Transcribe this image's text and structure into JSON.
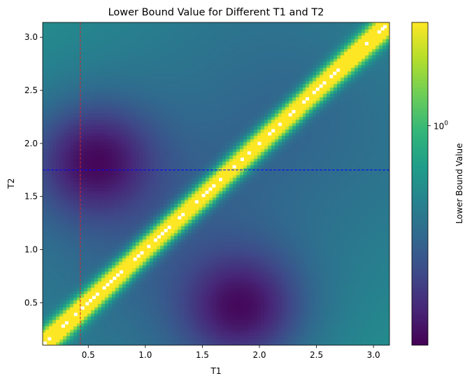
{
  "chart_data": {
    "type": "heatmap",
    "title": "Lower Bound Value for Different T1 and T2",
    "xlabel": "T1",
    "ylabel": "T2",
    "xlim": [
      0.1,
      3.14
    ],
    "ylim": [
      0.1,
      3.14
    ],
    "x_ticks": [
      0.5,
      1.0,
      1.5,
      2.0,
      2.5,
      3.0
    ],
    "y_ticks": [
      0.5,
      1.0,
      1.5,
      2.0,
      2.5,
      3.0
    ],
    "x_tick_labels": [
      "0.5",
      "1.0",
      "1.5",
      "2.0",
      "2.5",
      "3.0"
    ],
    "y_tick_labels": [
      "0.5",
      "1.0",
      "1.5",
      "2.0",
      "2.5",
      "3.0"
    ],
    "grid": false,
    "colormap": "viridis",
    "color_scale": "log",
    "colorbar": {
      "label": "Lower Bound Value",
      "tick_value": 1.0,
      "tick_label_base": "10",
      "tick_label_exp": "0",
      "range": [
        0.07,
        3.5
      ]
    },
    "surface_description": "value is large along the diagonal T1 = T2 (saturated yellow, with white/undefined cells on the diagonal), small in two off-diagonal basins near (0.55, 1.85) and (1.85, 0.45)",
    "basins": [
      {
        "t1": 0.55,
        "t2": 1.85
      },
      {
        "t1": 1.85,
        "t2": 0.45
      }
    ],
    "reference_lines": [
      {
        "orientation": "vertical",
        "value": 0.43,
        "color": "#d62728",
        "style": "dashed"
      },
      {
        "orientation": "horizontal",
        "value": 1.75,
        "color": "#0000ff",
        "style": "dashed"
      }
    ],
    "undefined_cells_t": [
      0.12,
      0.16,
      0.28,
      0.31,
      0.39,
      0.45,
      0.49,
      0.52,
      0.55,
      0.58,
      0.64,
      0.67,
      0.7,
      0.73,
      0.76,
      0.79,
      0.91,
      0.94,
      0.97,
      1.03,
      1.09,
      1.12,
      1.15,
      1.18,
      1.21,
      1.3,
      1.33,
      1.45,
      1.51,
      1.54,
      1.57,
      1.6,
      1.66,
      1.78,
      1.85,
      1.91,
      2.0,
      2.09,
      2.12,
      2.18,
      2.27,
      2.3,
      2.39,
      2.42,
      2.48,
      2.51,
      2.54,
      2.57,
      2.63,
      2.66,
      2.69,
      2.94,
      3.05,
      3.08,
      3.1
    ],
    "colors": {
      "vertical_line": "#d62728",
      "horizontal_line": "#0000ff",
      "undefined_cell": "#ffffff"
    }
  }
}
